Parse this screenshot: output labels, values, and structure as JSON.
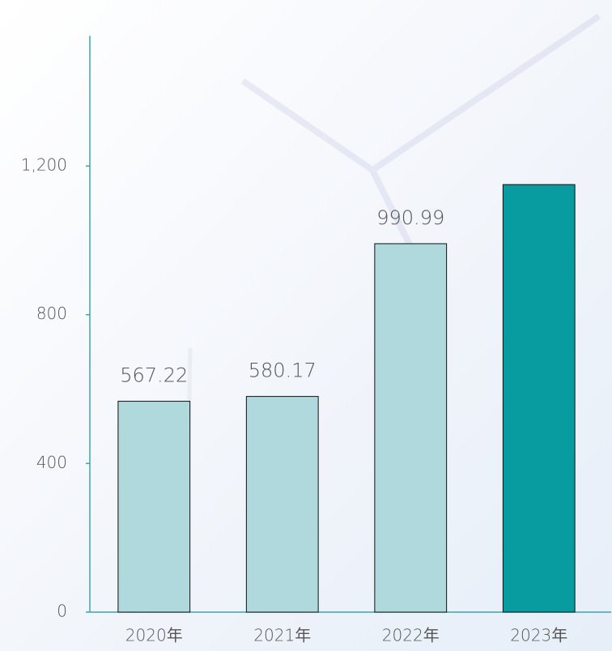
{
  "chart_data": {
    "type": "bar",
    "categories": [
      "2020年",
      "2021年",
      "2022年",
      "2023年"
    ],
    "values": [
      567.22,
      580.17,
      990.99,
      1150
    ],
    "value_labels": [
      "567.22",
      "580.17",
      "990.99",
      null
    ],
    "colors": [
      "#afd9dc",
      "#afd9dc",
      "#afd9dc",
      "#089ba0"
    ],
    "ylim": [
      0,
      1550
    ],
    "yticks": [
      0,
      400,
      800,
      {
        "value": 1200,
        "label": "1,200"
      }
    ],
    "grid": false
  }
}
